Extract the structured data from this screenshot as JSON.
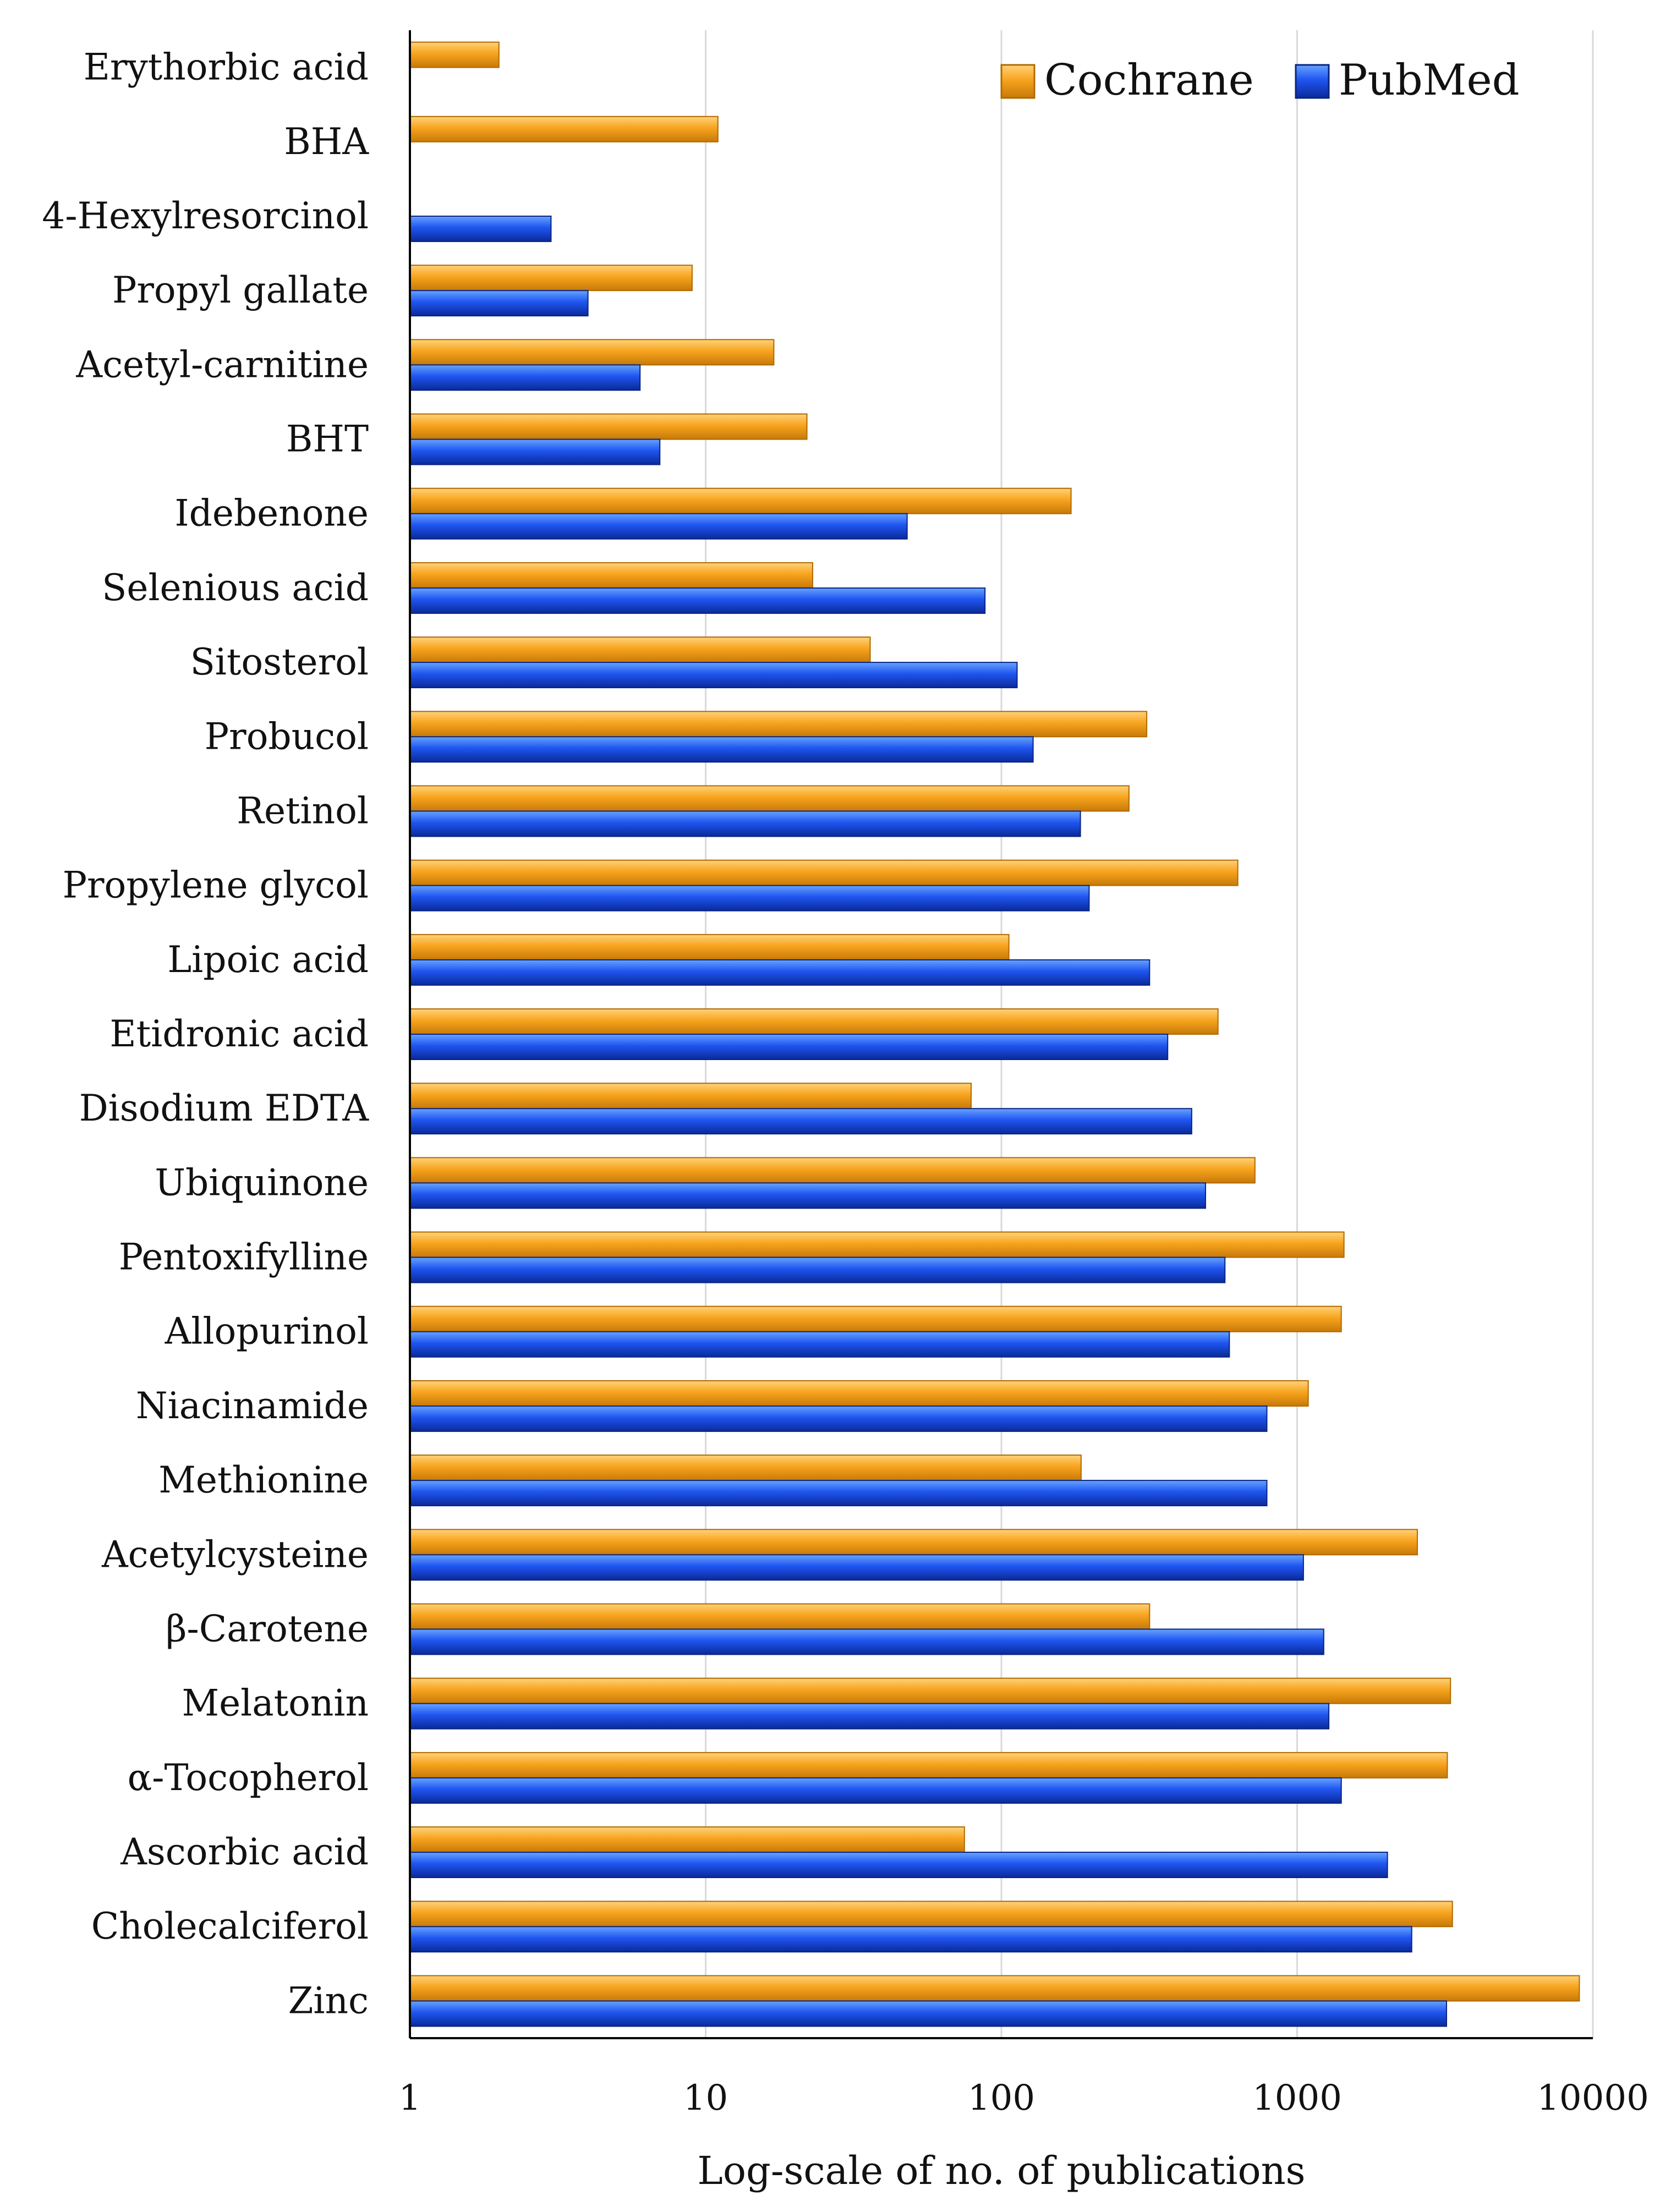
{
  "chart_data": {
    "type": "bar",
    "orientation": "horizontal",
    "xscale": "log",
    "xlim": [
      1,
      10000
    ],
    "xticks": [
      "1",
      "10",
      "100",
      "1000",
      "10000"
    ],
    "xlabel": "Log-scale of no. of publications",
    "grid": true,
    "legend_position": "top-right",
    "categories": [
      "Erythorbic acid",
      "BHA",
      "4-Hexylresorcinol",
      "Propyl gallate",
      "Acetyl-carnitine",
      "BHT",
      "Idebenone",
      "Selenious acid",
      "Sitosterol",
      "Probucol",
      "Retinol",
      "Propylene glycol",
      "Lipoic acid",
      "Etidronic acid",
      "Disodium EDTA",
      "Ubiquinone",
      "Pentoxifylline",
      "Allopurinol",
      "Niacinamide",
      "Methionine",
      "Acetylcysteine",
      "β-Carotene",
      "Melatonin",
      "α-Tocopherol",
      "Ascorbic acid",
      "Cholecalciferol",
      "Zinc"
    ],
    "series": [
      {
        "name": "Cochrane",
        "color": "#F5A623",
        "values": [
          2,
          11,
          null,
          9,
          17,
          22,
          172,
          23,
          36,
          310,
          270,
          630,
          106,
          540,
          79,
          720,
          1440,
          1410,
          1090,
          186,
          2550,
          317,
          3300,
          3220,
          75,
          3350,
          9000
        ]
      },
      {
        "name": "PubMed",
        "color": "#1F4FE0",
        "values": [
          null,
          null,
          3,
          4,
          6,
          7,
          48,
          88,
          113,
          128,
          185,
          198,
          317,
          365,
          440,
          490,
          570,
          590,
          790,
          790,
          1050,
          1230,
          1280,
          1410,
          2020,
          2440,
          3200
        ]
      }
    ]
  }
}
